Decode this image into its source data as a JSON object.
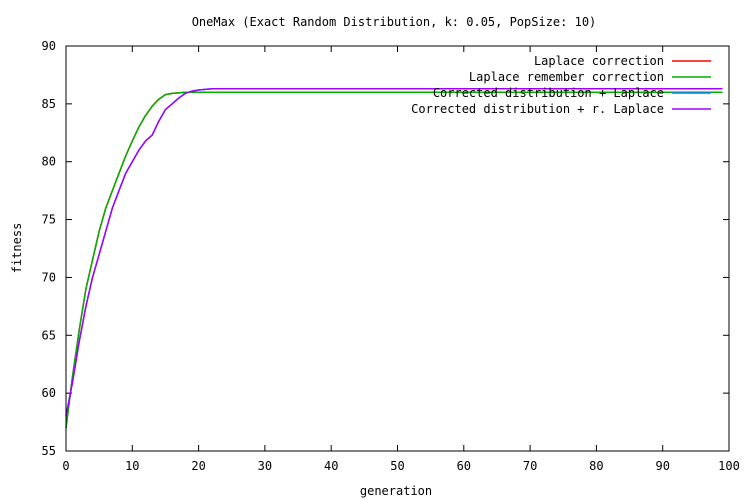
{
  "chart_data": {
    "type": "line",
    "title": "OneMax (Exact Random Distribution, k: 0.05, PopSize: 10)",
    "xlabel": "generation",
    "ylabel": "fitness",
    "xlim": [
      0,
      100
    ],
    "ylim": [
      55,
      90
    ],
    "xticks": [
      0,
      10,
      20,
      30,
      40,
      50,
      60,
      70,
      80,
      90,
      100
    ],
    "yticks": [
      55,
      60,
      65,
      70,
      75,
      80,
      85,
      90
    ],
    "grid": false,
    "legend_position": "top-right",
    "series": [
      {
        "name": "Laplace correction",
        "color": "#ff0000",
        "x": [
          0,
          1,
          2,
          3,
          4,
          5,
          6,
          7,
          8,
          9,
          10,
          11,
          12,
          13,
          14,
          15,
          16,
          17,
          18,
          19,
          20,
          25,
          30,
          40,
          50,
          60,
          70,
          80,
          90,
          99
        ],
        "y": [
          57.0,
          61.5,
          65.5,
          69.0,
          71.5,
          74.0,
          76.0,
          77.5,
          79.0,
          80.5,
          81.8,
          83.0,
          84.0,
          84.8,
          85.4,
          85.8,
          85.9,
          85.95,
          86.0,
          86.0,
          86.0,
          86.0,
          86.0,
          86.0,
          86.0,
          86.0,
          86.0,
          86.0,
          86.0,
          86.0
        ]
      },
      {
        "name": "Laplace remember correction",
        "color": "#00b000",
        "x": [
          0,
          1,
          2,
          3,
          4,
          5,
          6,
          7,
          8,
          9,
          10,
          11,
          12,
          13,
          14,
          15,
          16,
          17,
          18,
          19,
          20,
          25,
          30,
          40,
          50,
          60,
          70,
          80,
          90,
          99
        ],
        "y": [
          57.0,
          61.5,
          65.5,
          69.0,
          71.5,
          74.0,
          76.0,
          77.5,
          79.0,
          80.5,
          81.8,
          83.0,
          84.0,
          84.8,
          85.4,
          85.8,
          85.9,
          85.95,
          86.0,
          86.0,
          86.0,
          86.0,
          86.0,
          86.0,
          86.0,
          86.0,
          86.0,
          86.0,
          86.0,
          86.0
        ]
      },
      {
        "name": "Corrected distribution + Laplace",
        "color": "#0080ff",
        "x": [
          0,
          1,
          2,
          3,
          4,
          5,
          6,
          7,
          8,
          9,
          10,
          11,
          12,
          13,
          14,
          15,
          16,
          17,
          18,
          19,
          20,
          21,
          22,
          25,
          30,
          40,
          50,
          60,
          70,
          80,
          90,
          99
        ],
        "y": [
          58.0,
          61.0,
          64.5,
          67.5,
          70.0,
          72.0,
          74.0,
          76.0,
          77.5,
          79.0,
          80.0,
          81.0,
          81.8,
          82.3,
          83.5,
          84.5,
          85.0,
          85.5,
          85.9,
          86.1,
          86.2,
          86.25,
          86.3,
          86.3,
          86.3,
          86.3,
          86.3,
          86.3,
          86.3,
          86.3,
          86.3,
          86.3
        ]
      },
      {
        "name": "Corrected distribution + r. Laplace",
        "color": "#a000ff",
        "x": [
          0,
          1,
          2,
          3,
          4,
          5,
          6,
          7,
          8,
          9,
          10,
          11,
          12,
          13,
          14,
          15,
          16,
          17,
          18,
          19,
          20,
          21,
          22,
          25,
          30,
          40,
          50,
          60,
          70,
          80,
          90,
          99
        ],
        "y": [
          58.0,
          61.0,
          64.5,
          67.5,
          70.0,
          72.0,
          74.0,
          76.0,
          77.5,
          79.0,
          80.0,
          81.0,
          81.8,
          82.3,
          83.5,
          84.5,
          85.0,
          85.5,
          85.9,
          86.1,
          86.2,
          86.25,
          86.3,
          86.3,
          86.3,
          86.3,
          86.3,
          86.3,
          86.3,
          86.3,
          86.3,
          86.3
        ]
      }
    ]
  }
}
